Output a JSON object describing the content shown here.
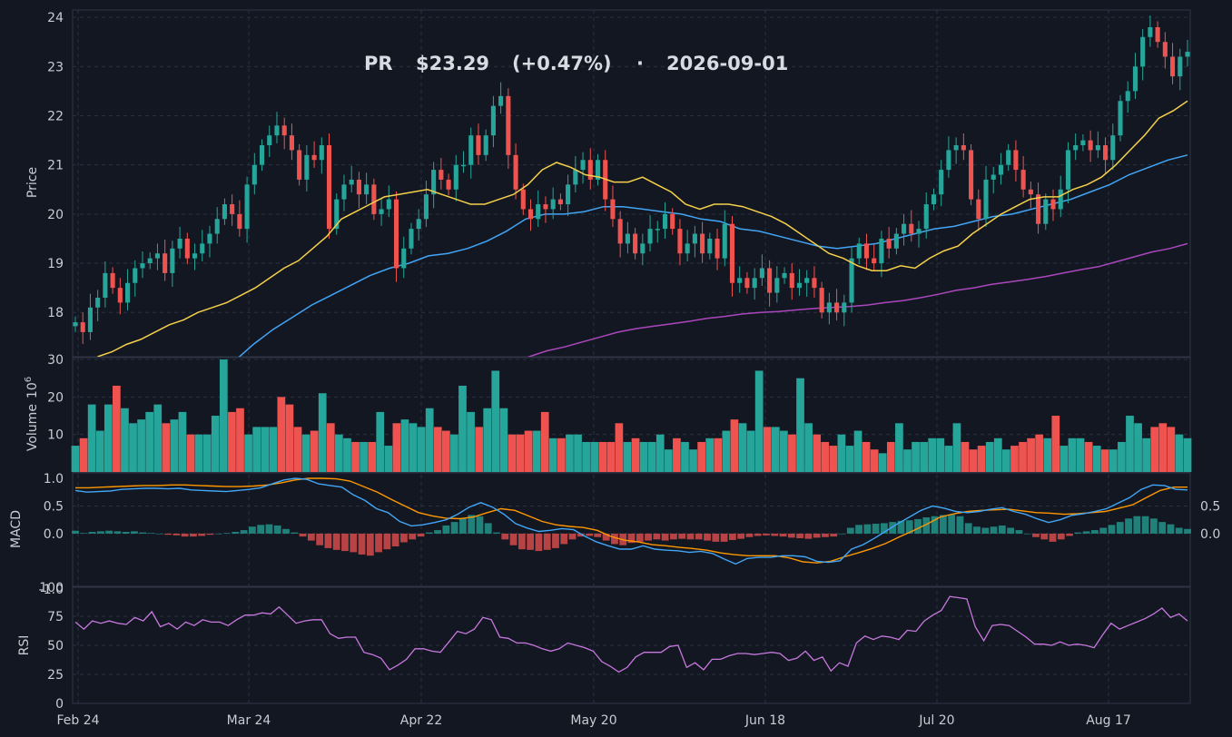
{
  "header": {
    "ticker": "PR",
    "price": "$23.29",
    "change": "(+0.47%)",
    "separator": "·",
    "date": "2026-09-01"
  },
  "colors": {
    "background": "#131722",
    "up": "#26a69a",
    "down": "#ef5350",
    "sma20": "#f5d04a",
    "sma50": "#42a5f5",
    "sma200": "#ab47bc",
    "macd": "#42a5f5",
    "signal": "#ff9800",
    "rsi": "#c678dd",
    "grid": "#2a3040"
  },
  "chart_data": [
    {
      "type": "candlestick",
      "ylabel": "Price",
      "ylim": [
        17.1,
        24.15
      ],
      "yticks": [
        18,
        19,
        20,
        21,
        22,
        23,
        24
      ],
      "xticks": [
        "Feb 24",
        "Mar 24",
        "Apr 22",
        "May 20",
        "Jun 18",
        "Jul 20",
        "Aug 17"
      ],
      "x_start": "2026-02-24",
      "x_end": "2026-09-01",
      "closes": [
        17.8,
        17.6,
        18.1,
        18.3,
        18.8,
        18.5,
        18.2,
        18.6,
        18.9,
        19.0,
        19.1,
        19.2,
        18.8,
        19.3,
        19.5,
        19.1,
        19.2,
        19.4,
        19.6,
        19.9,
        20.2,
        20.0,
        19.7,
        20.6,
        21.0,
        21.4,
        21.6,
        21.8,
        21.6,
        21.3,
        20.7,
        21.2,
        21.1,
        21.4,
        19.7,
        20.3,
        20.6,
        20.7,
        20.4,
        20.6,
        20.0,
        20.1,
        20.3,
        18.9,
        19.3,
        19.7,
        19.9,
        20.4,
        20.9,
        20.7,
        20.5,
        21.0,
        21.0,
        21.6,
        21.2,
        21.6,
        22.2,
        22.4,
        21.2,
        20.5,
        20.1,
        19.9,
        20.2,
        20.1,
        20.3,
        20.2,
        20.6,
        20.9,
        21.1,
        20.7,
        21.1,
        20.3,
        19.9,
        19.4,
        19.6,
        19.2,
        19.4,
        19.7,
        19.7,
        20.0,
        19.7,
        19.2,
        19.4,
        19.6,
        19.2,
        19.5,
        19.1,
        19.8,
        18.6,
        18.7,
        18.5,
        18.7,
        18.9,
        18.4,
        18.7,
        18.8,
        18.5,
        18.6,
        18.7,
        18.5,
        18.0,
        18.2,
        18.0,
        18.2,
        19.1,
        19.4,
        19.1,
        19.0,
        19.5,
        19.3,
        19.6,
        19.8,
        19.6,
        19.7,
        20.2,
        20.4,
        20.9,
        21.3,
        21.4,
        21.3,
        20.3,
        19.9,
        20.7,
        20.8,
        21.0,
        21.3,
        20.9,
        20.5,
        20.4,
        19.8,
        20.3,
        20.1,
        20.5,
        21.3,
        21.4,
        21.5,
        21.3,
        21.4,
        21.1,
        21.6,
        22.3,
        22.5,
        23.0,
        23.6,
        23.8,
        23.5,
        23.2,
        22.8,
        23.2,
        23.3
      ],
      "sma": [
        {
          "period": 20,
          "values": [
            17.1,
            17.2,
            17.35,
            17.45,
            17.6,
            17.75,
            17.85,
            18.0,
            18.1,
            18.2,
            18.35,
            18.5,
            18.7,
            18.9,
            19.05,
            19.3,
            19.55,
            19.9,
            20.05,
            20.2,
            20.35,
            20.4,
            20.45,
            20.5,
            20.4,
            20.3,
            20.2,
            20.2,
            20.3,
            20.4,
            20.6,
            20.9,
            21.05,
            20.95,
            20.8,
            20.75,
            20.65,
            20.65,
            20.75,
            20.6,
            20.45,
            20.2,
            20.1,
            20.2,
            20.2,
            20.15,
            20.05,
            19.95,
            19.8,
            19.6,
            19.4,
            19.2,
            19.1,
            18.95,
            18.85,
            18.85,
            18.95,
            18.9,
            19.1,
            19.25,
            19.35,
            19.6,
            19.8,
            20.0,
            20.15,
            20.3,
            20.35,
            20.35,
            20.5,
            20.6,
            20.75,
            21.0,
            21.3,
            21.6,
            21.95,
            22.1,
            22.3
          ]
        },
        {
          "period": 50,
          "values": [
            16.2,
            16.4,
            16.7,
            17.0,
            17.35,
            17.65,
            17.9,
            18.15,
            18.35,
            18.55,
            18.75,
            18.9,
            19.0,
            19.15,
            19.2,
            19.3,
            19.45,
            19.65,
            19.9,
            20.0,
            20.0,
            20.05,
            20.15,
            20.15,
            20.1,
            20.05,
            20.0,
            19.9,
            19.85,
            19.7,
            19.65,
            19.55,
            19.45,
            19.35,
            19.3,
            19.35,
            19.4,
            19.5,
            19.6,
            19.7,
            19.75,
            19.85,
            19.95,
            20.0,
            20.1,
            20.2,
            20.3,
            20.45,
            20.6,
            20.8,
            20.95,
            21.1,
            21.2
          ]
        },
        {
          "period": 200,
          "values": [
            16.5,
            16.7,
            16.9,
            17.1,
            17.22,
            17.3,
            17.4,
            17.5,
            17.6,
            17.67,
            17.72,
            17.77,
            17.82,
            17.88,
            17.92,
            17.97,
            18.0,
            18.02,
            18.05,
            18.08,
            18.1,
            18.12,
            18.15,
            18.2,
            18.24,
            18.3,
            18.37,
            18.45,
            18.5,
            18.57,
            18.62,
            18.67,
            18.73,
            18.8,
            18.87,
            18.93,
            19.03,
            19.13,
            19.23,
            19.3,
            19.4
          ]
        }
      ]
    },
    {
      "type": "bar",
      "ylabel": "Volume",
      "unit": "10^6",
      "unit_base": "10",
      "unit_exp": "6",
      "ylim": [
        0,
        30.5
      ],
      "yticks": [
        10,
        20,
        30
      ],
      "values": [
        7,
        9,
        18,
        11,
        18,
        23,
        17,
        13,
        14,
        16,
        18,
        13,
        14,
        16,
        10,
        10,
        10,
        15,
        30,
        16,
        17,
        10,
        12,
        12,
        12,
        20,
        18,
        12,
        10,
        11,
        21,
        13,
        10,
        9,
        8,
        8,
        8,
        16,
        7,
        13,
        14,
        13,
        12,
        17,
        12,
        11,
        10,
        23,
        16,
        12,
        17,
        27,
        17,
        10,
        10,
        11,
        11,
        16,
        9,
        9,
        10,
        10,
        8,
        8,
        8,
        8,
        13,
        8,
        9,
        8,
        8,
        10,
        6,
        9,
        8,
        6,
        8,
        9,
        9,
        11,
        14,
        13,
        11,
        27,
        12,
        12,
        11,
        10,
        25,
        13,
        10,
        8,
        7,
        10,
        7,
        11,
        8,
        6,
        5,
        8,
        13,
        6,
        8,
        8,
        9,
        9,
        7,
        13,
        8,
        6,
        7,
        8,
        9,
        6,
        7,
        8,
        9,
        10,
        9,
        15,
        7,
        9,
        9,
        8,
        7,
        6,
        6,
        8,
        15,
        13,
        9,
        12,
        13,
        12,
        10,
        9
      ]
    },
    {
      "type": "line",
      "ylabel": "MACD",
      "ylim": [
        -0.97,
        1.0
      ],
      "yticks_left": [
        -1.0,
        0.0,
        0.5,
        1.0
      ],
      "yticks_right": [
        0.0,
        0.5
      ],
      "macd": [
        0.78,
        0.75,
        0.76,
        0.77,
        0.8,
        0.81,
        0.82,
        0.82,
        0.81,
        0.82,
        0.79,
        0.78,
        0.77,
        0.76,
        0.78,
        0.8,
        0.83,
        0.9,
        0.97,
        1.0,
        0.98,
        0.9,
        0.87,
        0.84,
        0.7,
        0.6,
        0.45,
        0.38,
        0.22,
        0.14,
        0.16,
        0.2,
        0.25,
        0.35,
        0.48,
        0.56,
        0.48,
        0.35,
        0.18,
        0.1,
        0.04,
        0.06,
        0.09,
        0.07,
        -0.05,
        -0.15,
        -0.22,
        -0.28,
        -0.28,
        -0.22,
        -0.28,
        -0.3,
        -0.31,
        -0.34,
        -0.32,
        -0.36,
        -0.46,
        -0.55,
        -0.45,
        -0.43,
        -0.43,
        -0.4,
        -0.4,
        -0.42,
        -0.5,
        -0.52,
        -0.49,
        -0.28,
        -0.2,
        -0.08,
        0.05,
        0.18,
        0.3,
        0.42,
        0.5,
        0.46,
        0.4,
        0.38,
        0.4,
        0.44,
        0.47,
        0.4,
        0.35,
        0.27,
        0.2,
        0.25,
        0.33,
        0.36,
        0.4,
        0.45,
        0.55,
        0.65,
        0.8,
        0.88,
        0.87,
        0.8,
        0.79
      ],
      "signal": [
        0.83,
        0.83,
        0.84,
        0.85,
        0.86,
        0.87,
        0.87,
        0.88,
        0.88,
        0.87,
        0.86,
        0.85,
        0.85,
        0.86,
        0.88,
        0.92,
        0.97,
        1.0,
        1.0,
        0.99,
        0.95,
        0.85,
        0.75,
        0.62,
        0.5,
        0.38,
        0.32,
        0.28,
        0.27,
        0.3,
        0.38,
        0.45,
        0.42,
        0.32,
        0.22,
        0.16,
        0.13,
        0.11,
        0.06,
        -0.05,
        -0.12,
        -0.15,
        -0.2,
        -0.22,
        -0.25,
        -0.27,
        -0.3,
        -0.35,
        -0.38,
        -0.4,
        -0.4,
        -0.4,
        -0.44,
        -0.51,
        -0.53,
        -0.5,
        -0.42,
        -0.35,
        -0.27,
        -0.18,
        -0.06,
        0.05,
        0.17,
        0.3,
        0.36,
        0.4,
        0.42,
        0.43,
        0.44,
        0.41,
        0.38,
        0.37,
        0.35,
        0.36,
        0.38,
        0.4,
        0.46,
        0.52,
        0.65,
        0.78,
        0.84,
        0.84
      ],
      "histogram": [
        0.05,
        0.01,
        0.03,
        0.04,
        0.05,
        0.04,
        0.03,
        0.04,
        0.02,
        0.01,
        0.0,
        -0.02,
        -0.03,
        -0.05,
        -0.05,
        -0.04,
        -0.02,
        0.0,
        0.01,
        0.03,
        0.06,
        0.12,
        0.15,
        0.16,
        0.14,
        0.08,
        0.02,
        -0.05,
        -0.12,
        -0.2,
        -0.25,
        -0.28,
        -0.3,
        -0.32,
        -0.36,
        -0.38,
        -0.32,
        -0.27,
        -0.22,
        -0.15,
        -0.1,
        -0.05,
        0.02,
        0.06,
        0.14,
        0.2,
        0.26,
        0.32,
        0.3,
        0.18,
        0.02,
        -0.1,
        -0.2,
        -0.27,
        -0.28,
        -0.3,
        -0.28,
        -0.25,
        -0.18,
        -0.1,
        -0.05,
        -0.04,
        -0.06,
        -0.12,
        -0.18,
        -0.2,
        -0.16,
        -0.14,
        -0.12,
        -0.1,
        -0.12,
        -0.1,
        -0.09,
        -0.1,
        -0.1,
        -0.12,
        -0.14,
        -0.14,
        -0.11,
        -0.09,
        -0.06,
        -0.04,
        -0.03,
        -0.04,
        -0.05,
        -0.07,
        -0.08,
        -0.09,
        -0.07,
        -0.06,
        -0.05,
        0.0,
        0.1,
        0.15,
        0.16,
        0.17,
        0.18,
        0.2,
        0.22,
        0.23,
        0.25,
        0.28,
        0.3,
        0.32,
        0.33,
        0.3,
        0.18,
        0.12,
        0.1,
        0.12,
        0.14,
        0.1,
        0.06,
        0.0,
        -0.06,
        -0.1,
        -0.14,
        -0.1,
        -0.04,
        0.02,
        0.04,
        0.06,
        0.1,
        0.15,
        0.2,
        0.26,
        0.3,
        0.3,
        0.26,
        0.2,
        0.16,
        0.1,
        0.08
      ]
    },
    {
      "type": "line",
      "ylabel": "RSI",
      "ylim": [
        0,
        100
      ],
      "yticks": [
        0,
        25,
        50,
        75,
        100
      ],
      "values": [
        70,
        64,
        71,
        69,
        71,
        69,
        68,
        74,
        71,
        79,
        66,
        69,
        64,
        70,
        67,
        72,
        70,
        70,
        67,
        72,
        76,
        76,
        78,
        77,
        83,
        76,
        69,
        71,
        72,
        72,
        60,
        56,
        57,
        57,
        44,
        42,
        39,
        29,
        33,
        38,
        47,
        47,
        45,
        44,
        53,
        62,
        60,
        64,
        74,
        72,
        57,
        56,
        52,
        52,
        50,
        47,
        45,
        47,
        52,
        50,
        48,
        45,
        36,
        32,
        27,
        31,
        40,
        44,
        44,
        44,
        49,
        50,
        31,
        35,
        29,
        38,
        38,
        41,
        43,
        43,
        42,
        43,
        44,
        43,
        37,
        39,
        45,
        37,
        40,
        28,
        35,
        32,
        52,
        58,
        55,
        58,
        57,
        55,
        63,
        62,
        71,
        76,
        80,
        92,
        91,
        90,
        66,
        54,
        67,
        68,
        67,
        62,
        57,
        51,
        51,
        50,
        53,
        50,
        51,
        50,
        48,
        59,
        69,
        64,
        67,
        70,
        73,
        77,
        82,
        74,
        77,
        71
      ]
    }
  ]
}
